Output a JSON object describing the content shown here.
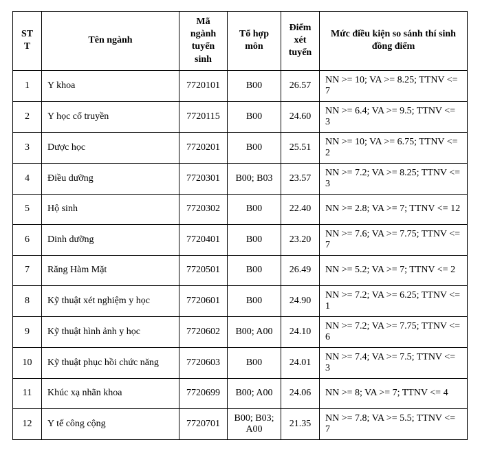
{
  "table": {
    "columns": [
      "STT",
      "Tên ngành",
      "Mã ngành tuyển sinh",
      "Tổ hợp môn",
      "Điểm xét tuyển",
      "Mức điều kiện so sánh thí sinh đồng điểm"
    ],
    "rows": [
      {
        "stt": "1",
        "name": "Y khoa",
        "code": "7720101",
        "group": "B00",
        "score": "26.57",
        "cond": "NN >= 10; VA >= 8.25; TTNV <= 7"
      },
      {
        "stt": "2",
        "name": "Y học cổ truyền",
        "code": "7720115",
        "group": "B00",
        "score": "24.60",
        "cond": "NN >= 6.4; VA >= 9.5; TTNV <= 3"
      },
      {
        "stt": "3",
        "name": "Dược học",
        "code": "7720201",
        "group": "B00",
        "score": "25.51",
        "cond": "NN >= 10; VA >= 6.75; TTNV <= 2"
      },
      {
        "stt": "4",
        "name": "Điều dưỡng",
        "code": "7720301",
        "group": "B00; B03",
        "score": "23.57",
        "cond": "NN >= 7.2; VA >= 8.25; TTNV <= 3"
      },
      {
        "stt": "5",
        "name": "Hộ sinh",
        "code": "7720302",
        "group": "B00",
        "score": "22.40",
        "cond": "NN >= 2.8; VA >= 7; TTNV <= 12"
      },
      {
        "stt": "6",
        "name": "Dinh dưỡng",
        "code": "7720401",
        "group": "B00",
        "score": "23.20",
        "cond": "NN >= 7.6; VA >= 7.75; TTNV <= 7"
      },
      {
        "stt": "7",
        "name": "Răng Hàm Mặt",
        "code": "7720501",
        "group": "B00",
        "score": "26.49",
        "cond": "NN >= 5.2; VA >= 7; TTNV <= 2"
      },
      {
        "stt": "8",
        "name": "Kỹ thuật xét nghiệm y học",
        "code": "7720601",
        "group": "B00",
        "score": "24.90",
        "cond": "NN >= 7.2; VA >= 6.25; TTNV <= 1"
      },
      {
        "stt": "9",
        "name": "Kỹ thuật hình ảnh y học",
        "code": "7720602",
        "group": "B00; A00",
        "score": "24.10",
        "cond": "NN >= 7.2; VA >= 7.75; TTNV <= 6"
      },
      {
        "stt": "10",
        "name": "Kỹ thuật phục hồi chức năng",
        "code": "7720603",
        "group": "B00",
        "score": "24.01",
        "cond": "NN >= 7.4; VA >= 7.5; TTNV <= 3"
      },
      {
        "stt": "11",
        "name": "Khúc xạ nhãn khoa",
        "code": "7720699",
        "group": "B00; A00",
        "score": "24.06",
        "cond": "NN >= 8; VA >= 7; TTNV <= 4"
      },
      {
        "stt": "12",
        "name": "Y tế công cộng",
        "code": "7720701",
        "group": "B00; B03; A00",
        "score": "21.35",
        "cond": "NN >= 7.8; VA >= 5.5; TTNV <= 7"
      }
    ],
    "col_align": [
      "center",
      "left",
      "center",
      "center",
      "center",
      "left"
    ]
  },
  "styles": {
    "font_family": "Times New Roman",
    "base_font_size_pt": 11,
    "border_color": "#000000",
    "background_color": "#ffffff",
    "text_color": "#000000"
  }
}
